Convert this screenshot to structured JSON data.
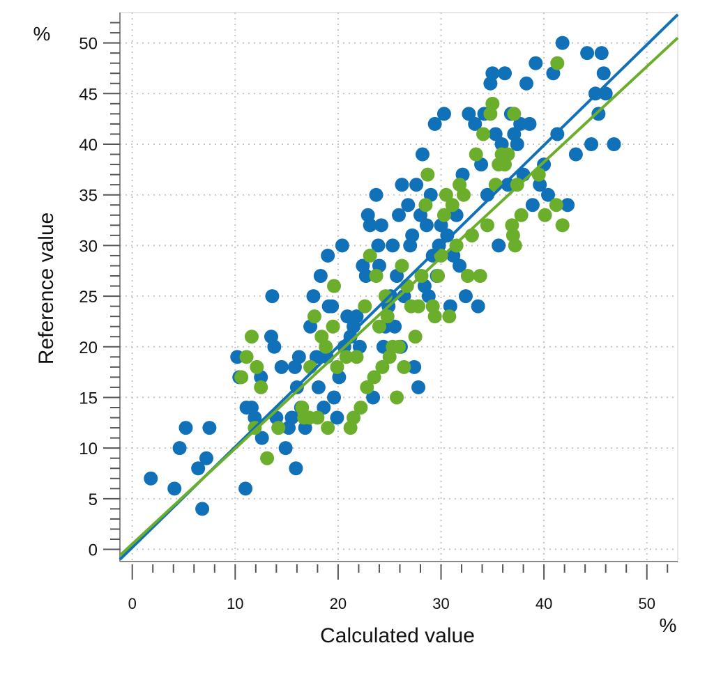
{
  "chart_data": {
    "type": "scatter",
    "title": "",
    "xlabel": "Calculated value",
    "ylabel": "Reference value",
    "x_unit": "%",
    "y_unit": "%",
    "xlim": [
      -1.2,
      53
    ],
    "ylim": [
      -1.2,
      53
    ],
    "x_ticks": [
      0,
      10,
      20,
      30,
      40,
      50
    ],
    "y_ticks": [
      0,
      5,
      10,
      15,
      20,
      25,
      30,
      35,
      40,
      45,
      50
    ],
    "grid": true,
    "legend": "none",
    "series": [
      {
        "color": "#1070b8",
        "fit_line": [
          [
            -1.2,
            -1.0
          ],
          [
            53,
            52.8
          ]
        ],
        "points": [
          [
            1.8,
            7
          ],
          [
            4.1,
            6
          ],
          [
            4.6,
            10
          ],
          [
            5.2,
            12
          ],
          [
            6.4,
            8
          ],
          [
            6.8,
            4
          ],
          [
            7.2,
            9
          ],
          [
            7.5,
            12
          ],
          [
            10.2,
            19
          ],
          [
            10.4,
            17
          ],
          [
            11.0,
            6
          ],
          [
            11.1,
            14
          ],
          [
            11.6,
            14
          ],
          [
            11.9,
            13
          ],
          [
            12.5,
            17
          ],
          [
            12.6,
            11
          ],
          [
            13.5,
            21
          ],
          [
            13.6,
            25
          ],
          [
            13.8,
            20
          ],
          [
            14.0,
            13
          ],
          [
            14.2,
            12
          ],
          [
            14.5,
            18
          ],
          [
            14.9,
            10
          ],
          [
            15.2,
            12
          ],
          [
            15.5,
            13
          ],
          [
            15.8,
            18
          ],
          [
            15.9,
            8
          ],
          [
            16.0,
            16
          ],
          [
            16.2,
            19
          ],
          [
            16.4,
            14
          ],
          [
            16.8,
            12
          ],
          [
            17.0,
            13
          ],
          [
            17.3,
            22
          ],
          [
            17.6,
            25
          ],
          [
            17.9,
            19
          ],
          [
            18.1,
            16
          ],
          [
            18.3,
            27
          ],
          [
            18.6,
            14
          ],
          [
            18.9,
            19
          ],
          [
            19.0,
            29
          ],
          [
            19.1,
            24
          ],
          [
            19.4,
            24
          ],
          [
            19.6,
            15
          ],
          [
            19.9,
            13
          ],
          [
            20.1,
            17
          ],
          [
            20.4,
            30
          ],
          [
            20.6,
            20
          ],
          [
            20.9,
            23
          ],
          [
            21.2,
            21
          ],
          [
            21.5,
            22
          ],
          [
            21.8,
            23
          ],
          [
            22.1,
            20
          ],
          [
            22.4,
            28
          ],
          [
            22.7,
            27
          ],
          [
            22.9,
            33
          ],
          [
            23.1,
            32
          ],
          [
            23.4,
            15
          ],
          [
            23.7,
            35
          ],
          [
            23.9,
            30
          ],
          [
            24.0,
            28
          ],
          [
            24.2,
            32
          ],
          [
            24.4,
            20
          ],
          [
            24.6,
            22
          ],
          [
            24.9,
            24
          ],
          [
            25.1,
            25
          ],
          [
            25.3,
            30
          ],
          [
            25.5,
            22
          ],
          [
            25.7,
            27
          ],
          [
            25.9,
            33
          ],
          [
            26.1,
            20
          ],
          [
            26.2,
            36
          ],
          [
            26.4,
            25
          ],
          [
            26.8,
            34
          ],
          [
            27.0,
            30
          ],
          [
            27.2,
            31
          ],
          [
            27.4,
            18
          ],
          [
            27.6,
            36
          ],
          [
            27.8,
            16
          ],
          [
            28.0,
            33
          ],
          [
            28.2,
            39
          ],
          [
            28.4,
            26
          ],
          [
            28.6,
            32
          ],
          [
            28.8,
            25
          ],
          [
            29.0,
            35
          ],
          [
            29.2,
            29
          ],
          [
            29.4,
            42
          ],
          [
            29.6,
            27
          ],
          [
            29.8,
            30
          ],
          [
            30.0,
            32
          ],
          [
            30.3,
            43
          ],
          [
            30.6,
            31
          ],
          [
            30.9,
            24
          ],
          [
            31.2,
            29
          ],
          [
            31.5,
            33
          ],
          [
            31.8,
            28
          ],
          [
            32.1,
            37
          ],
          [
            32.4,
            25
          ],
          [
            32.7,
            43
          ],
          [
            33.0,
            31
          ],
          [
            33.3,
            42
          ],
          [
            33.6,
            24
          ],
          [
            33.9,
            38
          ],
          [
            34.2,
            43
          ],
          [
            34.5,
            35
          ],
          [
            34.8,
            46
          ],
          [
            35.0,
            47
          ],
          [
            35.3,
            41
          ],
          [
            35.6,
            30
          ],
          [
            35.9,
            40
          ],
          [
            36.2,
            47
          ],
          [
            36.5,
            36
          ],
          [
            36.8,
            43
          ],
          [
            37.1,
            41
          ],
          [
            37.4,
            40
          ],
          [
            37.7,
            42
          ],
          [
            38.0,
            37
          ],
          [
            38.3,
            46
          ],
          [
            38.6,
            42
          ],
          [
            38.9,
            34
          ],
          [
            39.2,
            48
          ],
          [
            39.6,
            36
          ],
          [
            40.0,
            38
          ],
          [
            40.4,
            35
          ],
          [
            40.9,
            47
          ],
          [
            41.3,
            41
          ],
          [
            41.8,
            50
          ],
          [
            42.3,
            34
          ],
          [
            43.1,
            39
          ],
          [
            44.2,
            49
          ],
          [
            44.6,
            40
          ],
          [
            45.0,
            45
          ],
          [
            45.3,
            43
          ],
          [
            45.6,
            49
          ],
          [
            45.8,
            47
          ],
          [
            46.0,
            45
          ],
          [
            46.8,
            40
          ]
        ]
      },
      {
        "color": "#6aae2c",
        "fit_line": [
          [
            -1.2,
            -0.6
          ],
          [
            53,
            50.5
          ]
        ],
        "points": [
          [
            10.6,
            17
          ],
          [
            11.1,
            19
          ],
          [
            11.6,
            21
          ],
          [
            11.9,
            12
          ],
          [
            12.1,
            18
          ],
          [
            12.5,
            16
          ],
          [
            13.1,
            9
          ],
          [
            14.2,
            12
          ],
          [
            16.5,
            14
          ],
          [
            16.7,
            13
          ],
          [
            17.2,
            13
          ],
          [
            17.3,
            18
          ],
          [
            17.7,
            23
          ],
          [
            18.0,
            13
          ],
          [
            18.4,
            21
          ],
          [
            18.8,
            20
          ],
          [
            19.0,
            12
          ],
          [
            19.5,
            22
          ],
          [
            19.6,
            26
          ],
          [
            19.9,
            18
          ],
          [
            20.8,
            19
          ],
          [
            21.2,
            12
          ],
          [
            21.5,
            13
          ],
          [
            21.8,
            19
          ],
          [
            22.2,
            14
          ],
          [
            22.6,
            24
          ],
          [
            22.8,
            16
          ],
          [
            23.1,
            29
          ],
          [
            23.5,
            17
          ],
          [
            23.7,
            27
          ],
          [
            24.0,
            22
          ],
          [
            24.3,
            18
          ],
          [
            24.6,
            25
          ],
          [
            24.8,
            23
          ],
          [
            25.0,
            19
          ],
          [
            25.3,
            20
          ],
          [
            25.7,
            15
          ],
          [
            25.9,
            20
          ],
          [
            26.2,
            28
          ],
          [
            26.4,
            18
          ],
          [
            26.7,
            26
          ],
          [
            27.1,
            24
          ],
          [
            27.5,
            21
          ],
          [
            27.8,
            24
          ],
          [
            28.1,
            27
          ],
          [
            28.5,
            34
          ],
          [
            28.7,
            37
          ],
          [
            29.2,
            24
          ],
          [
            29.4,
            23
          ],
          [
            29.7,
            27
          ],
          [
            30.0,
            29
          ],
          [
            30.3,
            33
          ],
          [
            30.5,
            35
          ],
          [
            30.8,
            23
          ],
          [
            31.1,
            34
          ],
          [
            31.5,
            30
          ],
          [
            31.8,
            36
          ],
          [
            32.2,
            35
          ],
          [
            32.6,
            27
          ],
          [
            33.0,
            31
          ],
          [
            33.4,
            39
          ],
          [
            33.8,
            27
          ],
          [
            34.1,
            41
          ],
          [
            34.5,
            32
          ],
          [
            34.8,
            43
          ],
          [
            35.0,
            44
          ],
          [
            35.3,
            36
          ],
          [
            35.6,
            38
          ],
          [
            35.9,
            39
          ],
          [
            36.2,
            38
          ],
          [
            36.5,
            39
          ],
          [
            36.9,
            32
          ],
          [
            37.0,
            31
          ],
          [
            37.2,
            30
          ],
          [
            37.4,
            36
          ],
          [
            37.8,
            33
          ],
          [
            39.5,
            37
          ],
          [
            40.1,
            33
          ],
          [
            41.2,
            34
          ],
          [
            41.8,
            32
          ],
          [
            41.3,
            48
          ],
          [
            37.1,
            43
          ]
        ]
      }
    ]
  }
}
